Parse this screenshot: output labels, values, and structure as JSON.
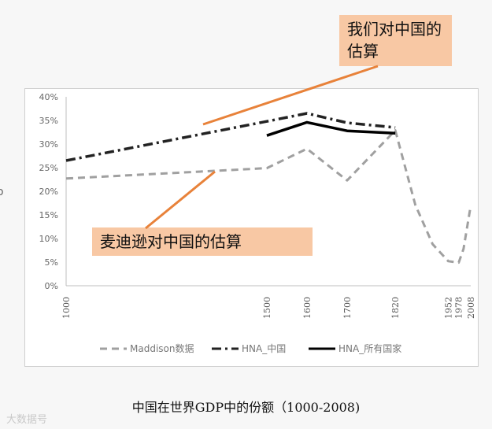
{
  "caption": "中国在世界GDP中的份额（1000-2008)",
  "annotations": {
    "hna_estimate": "我们对中国的估算",
    "maddison_estimate": "麦迪逊对中国的估算"
  },
  "watermark": "大数据号",
  "colors": {
    "maddison": "#a0a0a0",
    "hna_china": "#222222",
    "hna_all": "#000000",
    "annotation_fill": "#f8c8a4",
    "annotation_line": "#e8823a"
  },
  "chart_data": {
    "type": "line",
    "ylim": [
      0,
      40
    ],
    "xlim": [
      1000,
      2008
    ],
    "y_ticks": [
      "0%",
      "5%",
      "10%",
      "15%",
      "20%",
      "25%",
      "30%",
      "35%",
      "40%"
    ],
    "x_ticks": [
      "1000",
      "1500",
      "1600",
      "1700",
      "1820",
      "1952",
      "1978",
      "2008"
    ],
    "legend_position": "bottom",
    "grid": false,
    "series": [
      {
        "name": "Maddison数据",
        "style": "dashed",
        "x": [
          1000,
          1500,
          1600,
          1700,
          1820,
          1870,
          1913,
          1952,
          1978,
          1990,
          2008
        ],
        "y": [
          22.7,
          24.9,
          29.0,
          22.3,
          32.9,
          17.1,
          8.8,
          5.2,
          4.9,
          7.8,
          17.0
        ]
      },
      {
        "name": "HNA_中国",
        "style": "dash-dot",
        "x": [
          1000,
          1500,
          1600,
          1700,
          1820
        ],
        "y": [
          26.5,
          34.8,
          36.5,
          34.5,
          33.5
        ]
      },
      {
        "name": "HNA_所有国家",
        "style": "solid",
        "x": [
          1500,
          1600,
          1700,
          1820
        ],
        "y": [
          31.8,
          34.6,
          32.8,
          32.3
        ]
      }
    ]
  }
}
